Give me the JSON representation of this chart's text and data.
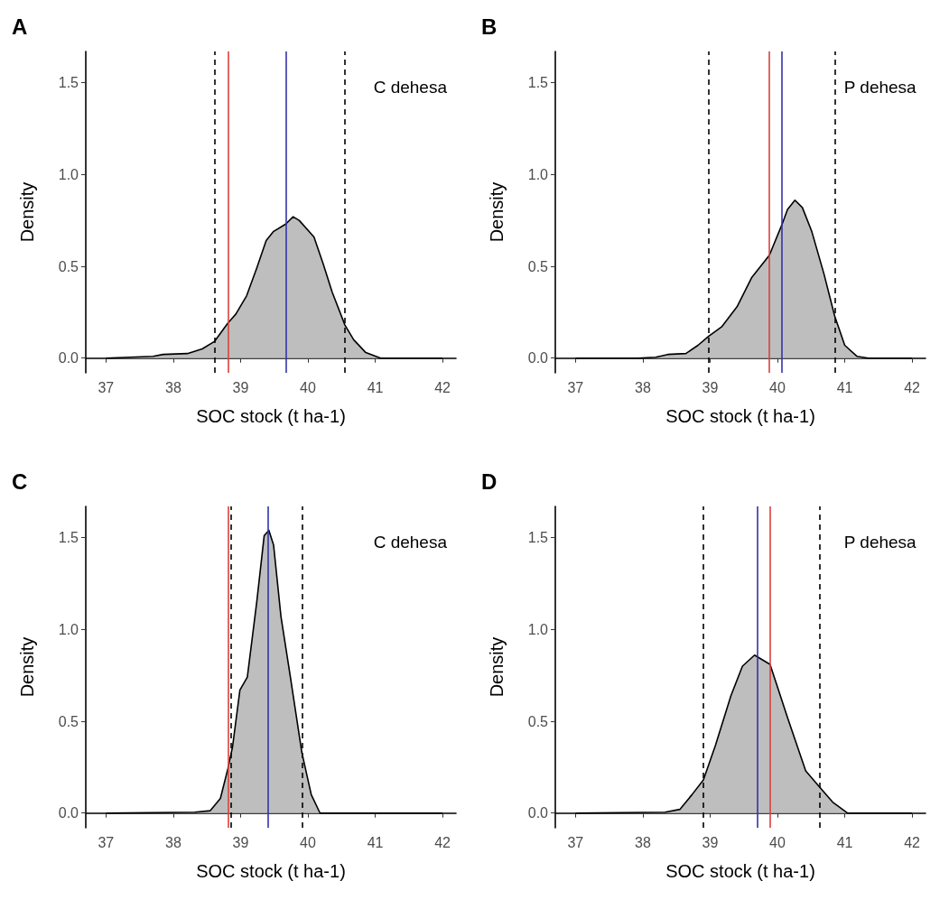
{
  "chart_data": [
    {
      "type": "area",
      "title": "A",
      "xlabel": "SOC stock (t ha-1)",
      "ylabel": "Density",
      "annotations": [
        "C dehesa"
      ],
      "marker": "none",
      "grid": false,
      "xlim": [
        36.7,
        42.2
      ],
      "xticks": [
        37,
        38,
        39,
        40,
        41,
        42
      ],
      "ylim": [
        -0.08,
        1.67
      ],
      "yticks": [
        {
          "value": 0,
          "label": "0.0"
        },
        {
          "value": 0.5,
          "label": "0.5"
        },
        {
          "value": 1,
          "label": "1.0"
        },
        {
          "value": 1.5,
          "label": "1.5"
        }
      ],
      "series": [
        {
          "color": "#bebebe",
          "x": [
            37,
            37.7,
            37.85,
            38.21,
            38.43,
            38.61,
            38.81,
            38.93,
            39.09,
            39.24,
            39.38,
            39.49,
            39.67,
            39.78,
            39.87,
            40.09,
            40.23,
            40.36,
            40.55,
            40.68,
            40.86,
            41.08,
            42
          ],
          "values": [
            0,
            0.01,
            0.02,
            0.025,
            0.05,
            0.09,
            0.19,
            0.24,
            0.34,
            0.49,
            0.64,
            0.69,
            0.73,
            0.77,
            0.75,
            0.66,
            0.51,
            0.36,
            0.18,
            0.1,
            0.03,
            0,
            0
          ]
        }
      ],
      "ref_lines": [
        {
          "axis": "x",
          "value": 38.61,
          "color": "#000000",
          "line_style": "dashed"
        },
        {
          "axis": "x",
          "value": 38.81,
          "color": "#d9413e",
          "line_style": "solid"
        },
        {
          "axis": "x",
          "value": 39.67,
          "color": "#3333aa",
          "line_style": "solid"
        },
        {
          "axis": "x",
          "value": 40.55,
          "color": "#000000",
          "line_style": "dashed"
        }
      ]
    },
    {
      "type": "area",
      "title": "B",
      "xlabel": "SOC stock (t ha-1)",
      "ylabel": "Density",
      "annotations": [
        "P dehesa"
      ],
      "marker": "none",
      "grid": false,
      "xlim": [
        36.7,
        42.2
      ],
      "xticks": [
        37,
        38,
        39,
        40,
        41,
        42
      ],
      "ylim": [
        -0.08,
        1.67
      ],
      "yticks": [
        {
          "value": 0,
          "label": "0.0"
        },
        {
          "value": 0.5,
          "label": "0.5"
        },
        {
          "value": 1,
          "label": "1.0"
        },
        {
          "value": 1.5,
          "label": "1.5"
        }
      ],
      "series": [
        {
          "color": "#bebebe",
          "x": [
            37,
            37.77,
            37.93,
            38.19,
            38.37,
            38.64,
            38.82,
            38.98,
            39.17,
            39.4,
            39.62,
            39.88,
            40.07,
            40.15,
            40.26,
            40.37,
            40.51,
            40.69,
            40.85,
            41.0,
            41.18,
            41.35,
            42
          ],
          "values": [
            0,
            0,
            0,
            0.005,
            0.02,
            0.025,
            0.07,
            0.12,
            0.17,
            0.28,
            0.44,
            0.56,
            0.73,
            0.81,
            0.86,
            0.82,
            0.69,
            0.46,
            0.23,
            0.07,
            0.01,
            0,
            0
          ]
        }
      ],
      "ref_lines": [
        {
          "axis": "x",
          "value": 38.98,
          "color": "#000000",
          "line_style": "dashed"
        },
        {
          "axis": "x",
          "value": 39.88,
          "color": "#d9413e",
          "line_style": "solid"
        },
        {
          "axis": "x",
          "value": 40.07,
          "color": "#3333aa",
          "line_style": "solid"
        },
        {
          "axis": "x",
          "value": 40.85,
          "color": "#000000",
          "line_style": "dashed"
        }
      ]
    },
    {
      "type": "area",
      "title": "C",
      "xlabel": "SOC stock (t ha-1)",
      "ylabel": "Density",
      "annotations": [
        "C dehesa"
      ],
      "marker": "none",
      "grid": false,
      "xlim": [
        36.7,
        42.2
      ],
      "xticks": [
        37,
        38,
        39,
        40,
        41,
        42
      ],
      "ylim": [
        -0.08,
        1.67
      ],
      "yticks": [
        {
          "value": 0,
          "label": "0.0"
        },
        {
          "value": 0.5,
          "label": "0.5"
        },
        {
          "value": 1,
          "label": "1.0"
        },
        {
          "value": 1.5,
          "label": "1.5"
        }
      ],
      "series": [
        {
          "color": "#bebebe",
          "x": [
            37,
            38.32,
            38.55,
            38.7,
            38.81,
            38.88,
            38.99,
            39.1,
            39.24,
            39.35,
            39.42,
            39.49,
            39.6,
            39.74,
            39.91,
            40.05,
            40.18,
            42
          ],
          "values": [
            0,
            0.005,
            0.013,
            0.08,
            0.24,
            0.36,
            0.67,
            0.74,
            1.15,
            1.51,
            1.54,
            1.46,
            1.07,
            0.74,
            0.33,
            0.1,
            0,
            0
          ]
        }
      ],
      "ref_lines": [
        {
          "axis": "x",
          "value": 38.81,
          "color": "#d9413e",
          "line_style": "solid"
        },
        {
          "axis": "x",
          "value": 38.85,
          "color": "#000000",
          "line_style": "dashed"
        },
        {
          "axis": "x",
          "value": 39.4,
          "color": "#3333aa",
          "line_style": "solid"
        },
        {
          "axis": "x",
          "value": 39.91,
          "color": "#000000",
          "line_style": "dashed"
        }
      ]
    },
    {
      "type": "area",
      "title": "D",
      "xlabel": "SOC stock (t ha-1)",
      "ylabel": "Density",
      "annotations": [
        "P dehesa"
      ],
      "marker": "none",
      "grid": false,
      "xlim": [
        36.7,
        42.2
      ],
      "xticks": [
        37,
        38,
        39,
        40,
        41,
        42
      ],
      "ylim": [
        -0.08,
        1.67
      ],
      "yticks": [
        {
          "value": 0,
          "label": "0.0"
        },
        {
          "value": 0.5,
          "label": "0.5"
        },
        {
          "value": 1,
          "label": "1.0"
        },
        {
          "value": 1.5,
          "label": "1.5"
        }
      ],
      "series": [
        {
          "color": "#bebebe",
          "x": [
            37,
            38.33,
            38.55,
            38.73,
            38.9,
            39.08,
            39.31,
            39.48,
            39.66,
            39.89,
            40.15,
            40.42,
            40.63,
            40.82,
            41.04,
            42
          ],
          "values": [
            0,
            0.005,
            0.02,
            0.1,
            0.18,
            0.37,
            0.64,
            0.8,
            0.86,
            0.81,
            0.52,
            0.23,
            0.14,
            0.06,
            0,
            0
          ]
        }
      ],
      "ref_lines": [
        {
          "axis": "x",
          "value": 38.9,
          "color": "#000000",
          "line_style": "dashed"
        },
        {
          "axis": "x",
          "value": 39.7,
          "color": "#3333aa",
          "line_style": "solid"
        },
        {
          "axis": "x",
          "value": 39.89,
          "color": "#d9413e",
          "line_style": "solid"
        },
        {
          "axis": "x",
          "value": 40.63,
          "color": "#000000",
          "line_style": "dashed"
        }
      ]
    }
  ]
}
